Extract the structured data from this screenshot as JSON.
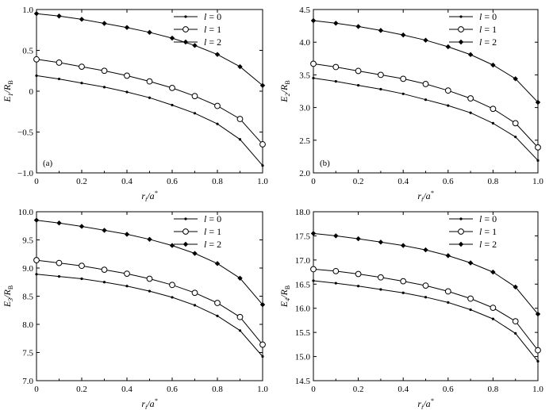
{
  "chart_data": [
    {
      "type": "line",
      "panel_label": "(a)",
      "xlabel": {
        "main": "r",
        "sub": "i",
        "rest": "/a",
        "sup": "*"
      },
      "ylabel": {
        "main": "E",
        "sub": "1",
        "rest": "/R",
        "sub2": "B"
      },
      "xlim": [
        0,
        1.0
      ],
      "ylim": [
        -1.0,
        1.0
      ],
      "xticks": [
        "0",
        "0.2",
        "0.4",
        "0.6",
        "0.8",
        "1.0"
      ],
      "yticks": [
        "−1.0",
        "−0.5",
        "0",
        "0.5",
        "1.0"
      ],
      "ytick_values": [
        -1.0,
        -0.5,
        0,
        0.5,
        1.0
      ],
      "xtick_values": [
        0,
        0.2,
        0.4,
        0.6,
        0.8,
        1.0
      ],
      "legend_position": "top-right",
      "x": [
        0,
        0.1,
        0.2,
        0.3,
        0.4,
        0.5,
        0.6,
        0.7,
        0.8,
        0.9,
        1.0
      ],
      "series": [
        {
          "name": "l = 0",
          "marker": "dot",
          "values": [
            0.19,
            0.15,
            0.1,
            0.05,
            -0.01,
            -0.08,
            -0.17,
            -0.27,
            -0.4,
            -0.59,
            -0.91
          ]
        },
        {
          "name": "l = 1",
          "marker": "circle",
          "values": [
            0.39,
            0.35,
            0.3,
            0.25,
            0.19,
            0.12,
            0.04,
            -0.06,
            -0.18,
            -0.34,
            -0.65
          ]
        },
        {
          "name": "l = 2",
          "marker": "diamond",
          "values": [
            0.95,
            0.92,
            0.88,
            0.83,
            0.78,
            0.72,
            0.65,
            0.56,
            0.45,
            0.3,
            0.07
          ]
        }
      ]
    },
    {
      "type": "line",
      "panel_label": "(b)",
      "xlabel": {
        "main": "r",
        "sub": "i",
        "rest": "/a",
        "sup": "*"
      },
      "ylabel": {
        "main": "E",
        "sub": "2",
        "rest": "/R",
        "sub2": "B"
      },
      "xlim": [
        0,
        1.0
      ],
      "ylim": [
        2.0,
        4.5
      ],
      "xticks": [
        "0",
        "0.2",
        "0.4",
        "0.6",
        "0.8",
        "1.0"
      ],
      "yticks": [
        "2.0",
        "2.5",
        "3.0",
        "3.5",
        "4.0",
        "4.5"
      ],
      "ytick_values": [
        2.0,
        2.5,
        3.0,
        3.5,
        4.0,
        4.5
      ],
      "xtick_values": [
        0,
        0.2,
        0.4,
        0.6,
        0.8,
        1.0
      ],
      "legend_position": "top-right",
      "x": [
        0,
        0.1,
        0.2,
        0.3,
        0.4,
        0.5,
        0.6,
        0.7,
        0.8,
        0.9,
        1.0
      ],
      "series": [
        {
          "name": "l = 0",
          "marker": "dot",
          "values": [
            3.45,
            3.4,
            3.34,
            3.28,
            3.21,
            3.12,
            3.03,
            2.92,
            2.76,
            2.55,
            2.19
          ]
        },
        {
          "name": "l = 1",
          "marker": "circle",
          "values": [
            3.67,
            3.62,
            3.56,
            3.5,
            3.44,
            3.36,
            3.26,
            3.14,
            2.98,
            2.76,
            2.39
          ]
        },
        {
          "name": "l = 2",
          "marker": "diamond",
          "values": [
            4.33,
            4.29,
            4.24,
            4.18,
            4.11,
            4.03,
            3.93,
            3.81,
            3.65,
            3.44,
            3.08
          ]
        }
      ]
    },
    {
      "type": "line",
      "panel_label": "",
      "xlabel": {
        "main": "r",
        "sub": "i",
        "rest": "/a",
        "sup": "*"
      },
      "ylabel": {
        "main": "E",
        "sub": "3",
        "rest": "/R",
        "sub2": "B"
      },
      "xlim": [
        0,
        1.0
      ],
      "ylim": [
        7.0,
        10.0
      ],
      "xticks": [
        "0",
        "0.2",
        "0.4",
        "0.6",
        "0.8",
        "1.0"
      ],
      "yticks": [
        "7.0",
        "7.5",
        "8.0",
        "8.5",
        "9.0",
        "9.5",
        "10.0"
      ],
      "ytick_values": [
        7.0,
        7.5,
        8.0,
        8.5,
        9.0,
        9.5,
        10.0
      ],
      "xtick_values": [
        0,
        0.2,
        0.4,
        0.6,
        0.8,
        1.0
      ],
      "legend_position": "top-right",
      "x": [
        0,
        0.1,
        0.2,
        0.3,
        0.4,
        0.5,
        0.6,
        0.7,
        0.8,
        0.9,
        1.0
      ],
      "series": [
        {
          "name": "l = 0",
          "marker": "dot",
          "values": [
            8.89,
            8.85,
            8.81,
            8.75,
            8.68,
            8.59,
            8.48,
            8.34,
            8.15,
            7.89,
            7.43
          ]
        },
        {
          "name": "l = 1",
          "marker": "circle",
          "values": [
            9.14,
            9.09,
            9.04,
            8.97,
            8.9,
            8.81,
            8.7,
            8.56,
            8.38,
            8.13,
            7.64
          ]
        },
        {
          "name": "l = 2",
          "marker": "diamond",
          "values": [
            9.85,
            9.8,
            9.74,
            9.67,
            9.6,
            9.51,
            9.4,
            9.26,
            9.08,
            8.82,
            8.35
          ]
        }
      ]
    },
    {
      "type": "line",
      "panel_label": "",
      "xlabel": {
        "main": "r",
        "sub": "i",
        "rest": "/a",
        "sup": "*"
      },
      "ylabel": {
        "main": "E",
        "sub": "4",
        "rest": "/R",
        "sub2": "B"
      },
      "xlim": [
        0,
        1.0
      ],
      "ylim": [
        14.5,
        18.0
      ],
      "xticks": [
        "0",
        "0.2",
        "0.4",
        "0.6",
        "0.8",
        "1.0"
      ],
      "yticks": [
        "14.5",
        "15.0",
        "15.5",
        "16.0",
        "16.5",
        "17.0",
        "17.5",
        "18.0"
      ],
      "ytick_values": [
        14.5,
        15.0,
        15.5,
        16.0,
        16.5,
        17.0,
        17.5,
        18.0
      ],
      "xtick_values": [
        0,
        0.2,
        0.4,
        0.6,
        0.8,
        1.0
      ],
      "legend_position": "top-right",
      "x": [
        0,
        0.1,
        0.2,
        0.3,
        0.4,
        0.5,
        0.6,
        0.7,
        0.8,
        0.9,
        1.0
      ],
      "series": [
        {
          "name": "l = 0",
          "marker": "dot",
          "values": [
            16.57,
            16.52,
            16.46,
            16.39,
            16.32,
            16.23,
            16.12,
            15.97,
            15.78,
            15.48,
            14.9
          ]
        },
        {
          "name": "l = 1",
          "marker": "circle",
          "values": [
            16.81,
            16.77,
            16.71,
            16.64,
            16.56,
            16.47,
            16.35,
            16.2,
            16.01,
            15.73,
            15.13
          ]
        },
        {
          "name": "l = 2",
          "marker": "diamond",
          "values": [
            17.55,
            17.5,
            17.44,
            17.37,
            17.3,
            17.21,
            17.09,
            16.94,
            16.75,
            16.44,
            15.88
          ]
        }
      ]
    }
  ],
  "colors": {
    "line": "#000000",
    "axis": "#000000",
    "background": "#ffffff"
  }
}
